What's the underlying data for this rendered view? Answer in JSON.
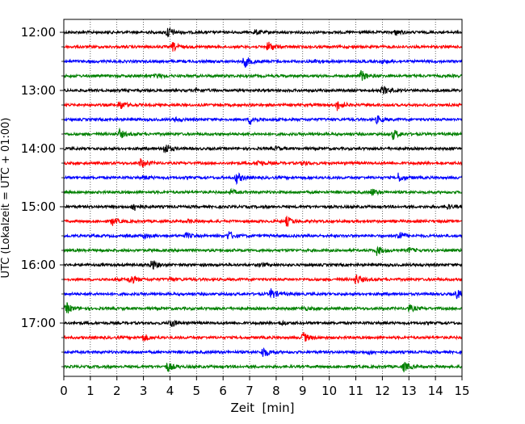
{
  "chart_data": {
    "type": "line",
    "title": "",
    "xlabel": "Zeit  [min]",
    "ylabel": "UTC (Lokalzeit = UTC + 01:00)",
    "xlim": [
      0,
      15
    ],
    "x_ticks": [
      0,
      1,
      2,
      3,
      4,
      5,
      6,
      7,
      8,
      9,
      10,
      11,
      12,
      13,
      14,
      15
    ],
    "y_tick_labels": [
      "12:00",
      "13:00",
      "14:00",
      "15:00",
      "16:00",
      "17:00"
    ],
    "grid": "vertical dotted",
    "legend": "none",
    "trace_colors": [
      "#000000",
      "#ff0000",
      "#0000ff",
      "#008000"
    ],
    "traces": [
      {
        "start": "12:00",
        "color": "#000000",
        "events": [
          [
            3.9,
            1.0
          ],
          [
            7.2,
            0.4
          ],
          [
            12.5,
            0.45
          ]
        ]
      },
      {
        "start": "12:15",
        "color": "#ff0000",
        "events": [
          [
            4.1,
            0.7
          ],
          [
            7.7,
            0.9
          ]
        ]
      },
      {
        "start": "12:30",
        "color": "#0000ff",
        "events": [
          [
            6.8,
            1.0
          ],
          [
            9.5,
            0.3
          ],
          [
            12.0,
            0.3
          ]
        ]
      },
      {
        "start": "12:45",
        "color": "#008000",
        "events": [
          [
            3.5,
            0.4
          ],
          [
            11.2,
            0.9
          ]
        ]
      },
      {
        "start": "13:00",
        "color": "#000000",
        "events": [
          [
            12.0,
            0.8
          ],
          [
            5.0,
            0.3
          ]
        ]
      },
      {
        "start": "13:15",
        "color": "#ff0000",
        "events": [
          [
            2.1,
            0.8
          ],
          [
            10.3,
            0.8
          ]
        ]
      },
      {
        "start": "13:30",
        "color": "#0000ff",
        "events": [
          [
            7.0,
            0.8
          ],
          [
            11.8,
            0.6
          ],
          [
            4.2,
            0.3
          ]
        ]
      },
      {
        "start": "13:45",
        "color": "#008000",
        "events": [
          [
            2.1,
            0.7
          ],
          [
            12.4,
            0.8
          ]
        ]
      },
      {
        "start": "14:00",
        "color": "#000000",
        "events": [
          [
            3.8,
            0.9
          ],
          [
            8.0,
            0.3
          ]
        ]
      },
      {
        "start": "14:15",
        "color": "#ff0000",
        "events": [
          [
            2.9,
            0.8
          ],
          [
            7.3,
            0.5
          ],
          [
            9.0,
            0.3
          ]
        ]
      },
      {
        "start": "14:30",
        "color": "#0000ff",
        "events": [
          [
            6.5,
            0.9
          ],
          [
            12.6,
            0.7
          ],
          [
            3.0,
            0.3
          ]
        ]
      },
      {
        "start": "14:45",
        "color": "#008000",
        "events": [
          [
            11.6,
            0.6
          ],
          [
            6.3,
            0.3
          ]
        ]
      },
      {
        "start": "15:00",
        "color": "#000000",
        "events": [
          [
            2.6,
            0.8
          ],
          [
            14.4,
            0.4
          ]
        ]
      },
      {
        "start": "15:15",
        "color": "#ff0000",
        "events": [
          [
            1.8,
            0.7
          ],
          [
            8.4,
            0.8
          ],
          [
            4.7,
            0.3
          ]
        ]
      },
      {
        "start": "15:30",
        "color": "#0000ff",
        "events": [
          [
            6.2,
            0.8
          ],
          [
            12.6,
            0.9
          ],
          [
            3.0,
            0.4
          ],
          [
            4.6,
            0.4
          ]
        ]
      },
      {
        "start": "15:45",
        "color": "#008000",
        "events": [
          [
            11.8,
            0.8
          ],
          [
            13.0,
            0.4
          ]
        ]
      },
      {
        "start": "16:00",
        "color": "#000000",
        "events": [
          [
            3.3,
            0.8
          ],
          [
            7.4,
            0.3
          ]
        ]
      },
      {
        "start": "16:15",
        "color": "#ff0000",
        "events": [
          [
            2.5,
            0.8
          ],
          [
            11.0,
            0.9
          ],
          [
            4.0,
            0.3
          ]
        ]
      },
      {
        "start": "16:30",
        "color": "#0000ff",
        "events": [
          [
            7.8,
            0.9
          ],
          [
            14.8,
            0.7
          ]
        ]
      },
      {
        "start": "16:45",
        "color": "#008000",
        "events": [
          [
            0.1,
            0.9
          ],
          [
            13.0,
            0.6
          ],
          [
            9.0,
            0.3
          ]
        ]
      },
      {
        "start": "17:00",
        "color": "#000000",
        "events": [
          [
            4.0,
            0.8
          ],
          [
            8.2,
            0.3
          ]
        ]
      },
      {
        "start": "17:15",
        "color": "#ff0000",
        "events": [
          [
            3.0,
            0.6
          ],
          [
            9.0,
            0.9
          ]
        ]
      },
      {
        "start": "17:30",
        "color": "#0000ff",
        "events": [
          [
            7.5,
            0.9
          ],
          [
            11.5,
            0.3
          ]
        ]
      },
      {
        "start": "17:45",
        "color": "#008000",
        "events": [
          [
            3.9,
            0.8
          ],
          [
            12.8,
            0.8
          ]
        ]
      }
    ]
  }
}
